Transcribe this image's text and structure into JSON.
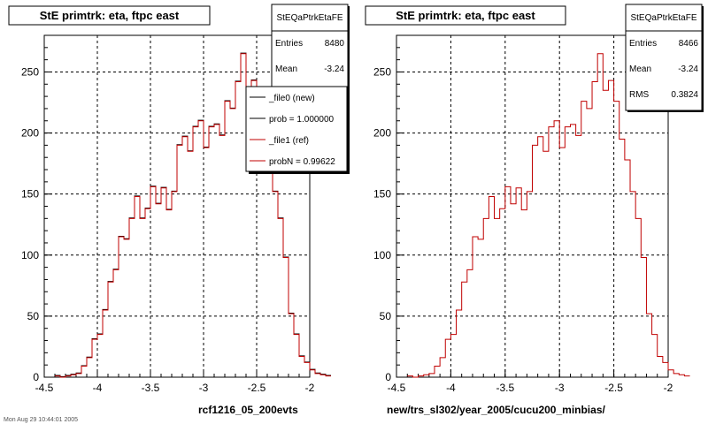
{
  "chart_data": [
    {
      "type": "histogram",
      "title": "StE primtrk: eta, ftpc east",
      "xlabel": "rcf1216_05_200evts",
      "ylabel": "",
      "xlim": [
        -4.5,
        -2
      ],
      "ylim": [
        0,
        280
      ],
      "xticks": [
        "-4.5",
        "-4",
        "-3.5",
        "-3",
        "-2.5",
        "-2"
      ],
      "yticks": [
        "0",
        "50",
        "100",
        "150",
        "200",
        "250"
      ],
      "grid": true,
      "bin_width": 0.05,
      "x_start": -4.4,
      "stats": {
        "name": "StEQaPtrkEtaFE",
        "rows": [
          {
            "label": "Entries",
            "value": "8480"
          },
          {
            "label": "Mean",
            "value": "-3.24"
          }
        ]
      },
      "legend": {
        "placement": "top-right",
        "entries": [
          {
            "label": "_file0 (new)",
            "color": "#000000"
          },
          {
            "label": "prob = 1.000000",
            "color": "#000000"
          },
          {
            "label": "_file1 (ref)",
            "color": "#c00000"
          },
          {
            "label": "probN = 0.99622",
            "color": "#c00000"
          }
        ]
      },
      "series": [
        {
          "name": "_file0 (new)",
          "color": "#000000",
          "values": [
            1,
            0,
            1,
            2,
            3,
            9,
            16,
            31,
            35,
            55,
            78,
            88,
            115,
            113,
            130,
            148,
            130,
            138,
            156,
            142,
            155,
            137,
            152,
            190,
            197,
            185,
            205,
            210,
            188,
            205,
            207,
            198,
            226,
            220,
            242,
            265,
            235,
            243,
            226,
            195,
            178,
            152,
            130,
            98,
            52,
            35,
            17,
            12,
            6,
            3,
            2,
            1
          ]
        },
        {
          "name": "_file1 (ref)",
          "color": "#c00000",
          "values": [
            1,
            0,
            1,
            2,
            3,
            9,
            16,
            31,
            35,
            55,
            78,
            88,
            115,
            113,
            130,
            148,
            130,
            138,
            156,
            142,
            155,
            137,
            152,
            190,
            197,
            185,
            205,
            210,
            188,
            205,
            207,
            198,
            226,
            220,
            242,
            265,
            235,
            243,
            226,
            195,
            178,
            152,
            130,
            98,
            52,
            35,
            17,
            12,
            6,
            3,
            2,
            1
          ]
        }
      ]
    },
    {
      "type": "histogram",
      "title": "StE primtrk: eta, ftpc east",
      "xlabel": "new/trs_sl302/year_2005/cucu200_minbias/",
      "ylabel": "",
      "xlim": [
        -4.5,
        -2
      ],
      "ylim": [
        0,
        280
      ],
      "xticks": [
        "-4.5",
        "-4",
        "-3.5",
        "-3",
        "-2.5",
        "-2"
      ],
      "yticks": [
        "0",
        "50",
        "100",
        "150",
        "200",
        "250"
      ],
      "grid": true,
      "bin_width": 0.05,
      "x_start": -4.4,
      "stats": {
        "name": "StEQaPtrkEtaFE",
        "rows": [
          {
            "label": "Entries",
            "value": "8466"
          },
          {
            "label": "Mean",
            "value": "-3.24"
          },
          {
            "label": "RMS",
            "value": "0.3824"
          }
        ]
      },
      "series": [
        {
          "name": "_file1 (ref)",
          "color": "#c00000",
          "values": [
            1,
            0,
            1,
            2,
            3,
            9,
            16,
            31,
            35,
            55,
            78,
            88,
            115,
            113,
            130,
            148,
            130,
            138,
            156,
            142,
            155,
            137,
            152,
            190,
            197,
            185,
            205,
            210,
            188,
            205,
            207,
            198,
            226,
            220,
            242,
            265,
            235,
            243,
            226,
            195,
            178,
            152,
            130,
            98,
            52,
            35,
            17,
            12,
            6,
            3,
            2,
            1
          ]
        }
      ]
    }
  ],
  "footer_text": "Mon Aug 29 10:44:01 2005"
}
